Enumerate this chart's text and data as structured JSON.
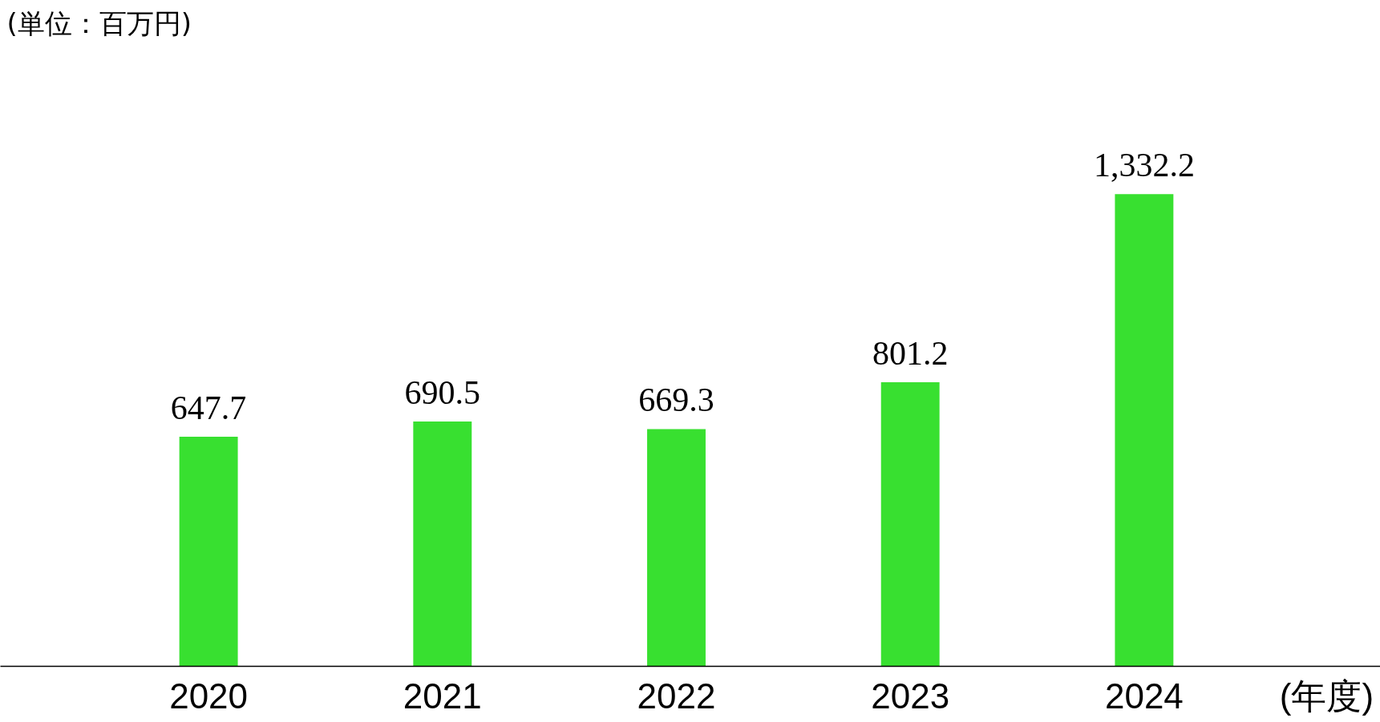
{
  "chart_data": {
    "type": "bar",
    "annotations": [
      "(単位：百万円)"
    ],
    "xlabel": "(年度)",
    "categories": [
      "2020",
      "2021",
      "2022",
      "2023",
      "2024"
    ],
    "values": [
      647.7,
      690.5,
      669.3,
      801.2,
      1332.2
    ],
    "value_labels": [
      "647.7",
      "690.5",
      "669.3",
      "801.2",
      "1,332.2"
    ],
    "color": "#38e030"
  }
}
